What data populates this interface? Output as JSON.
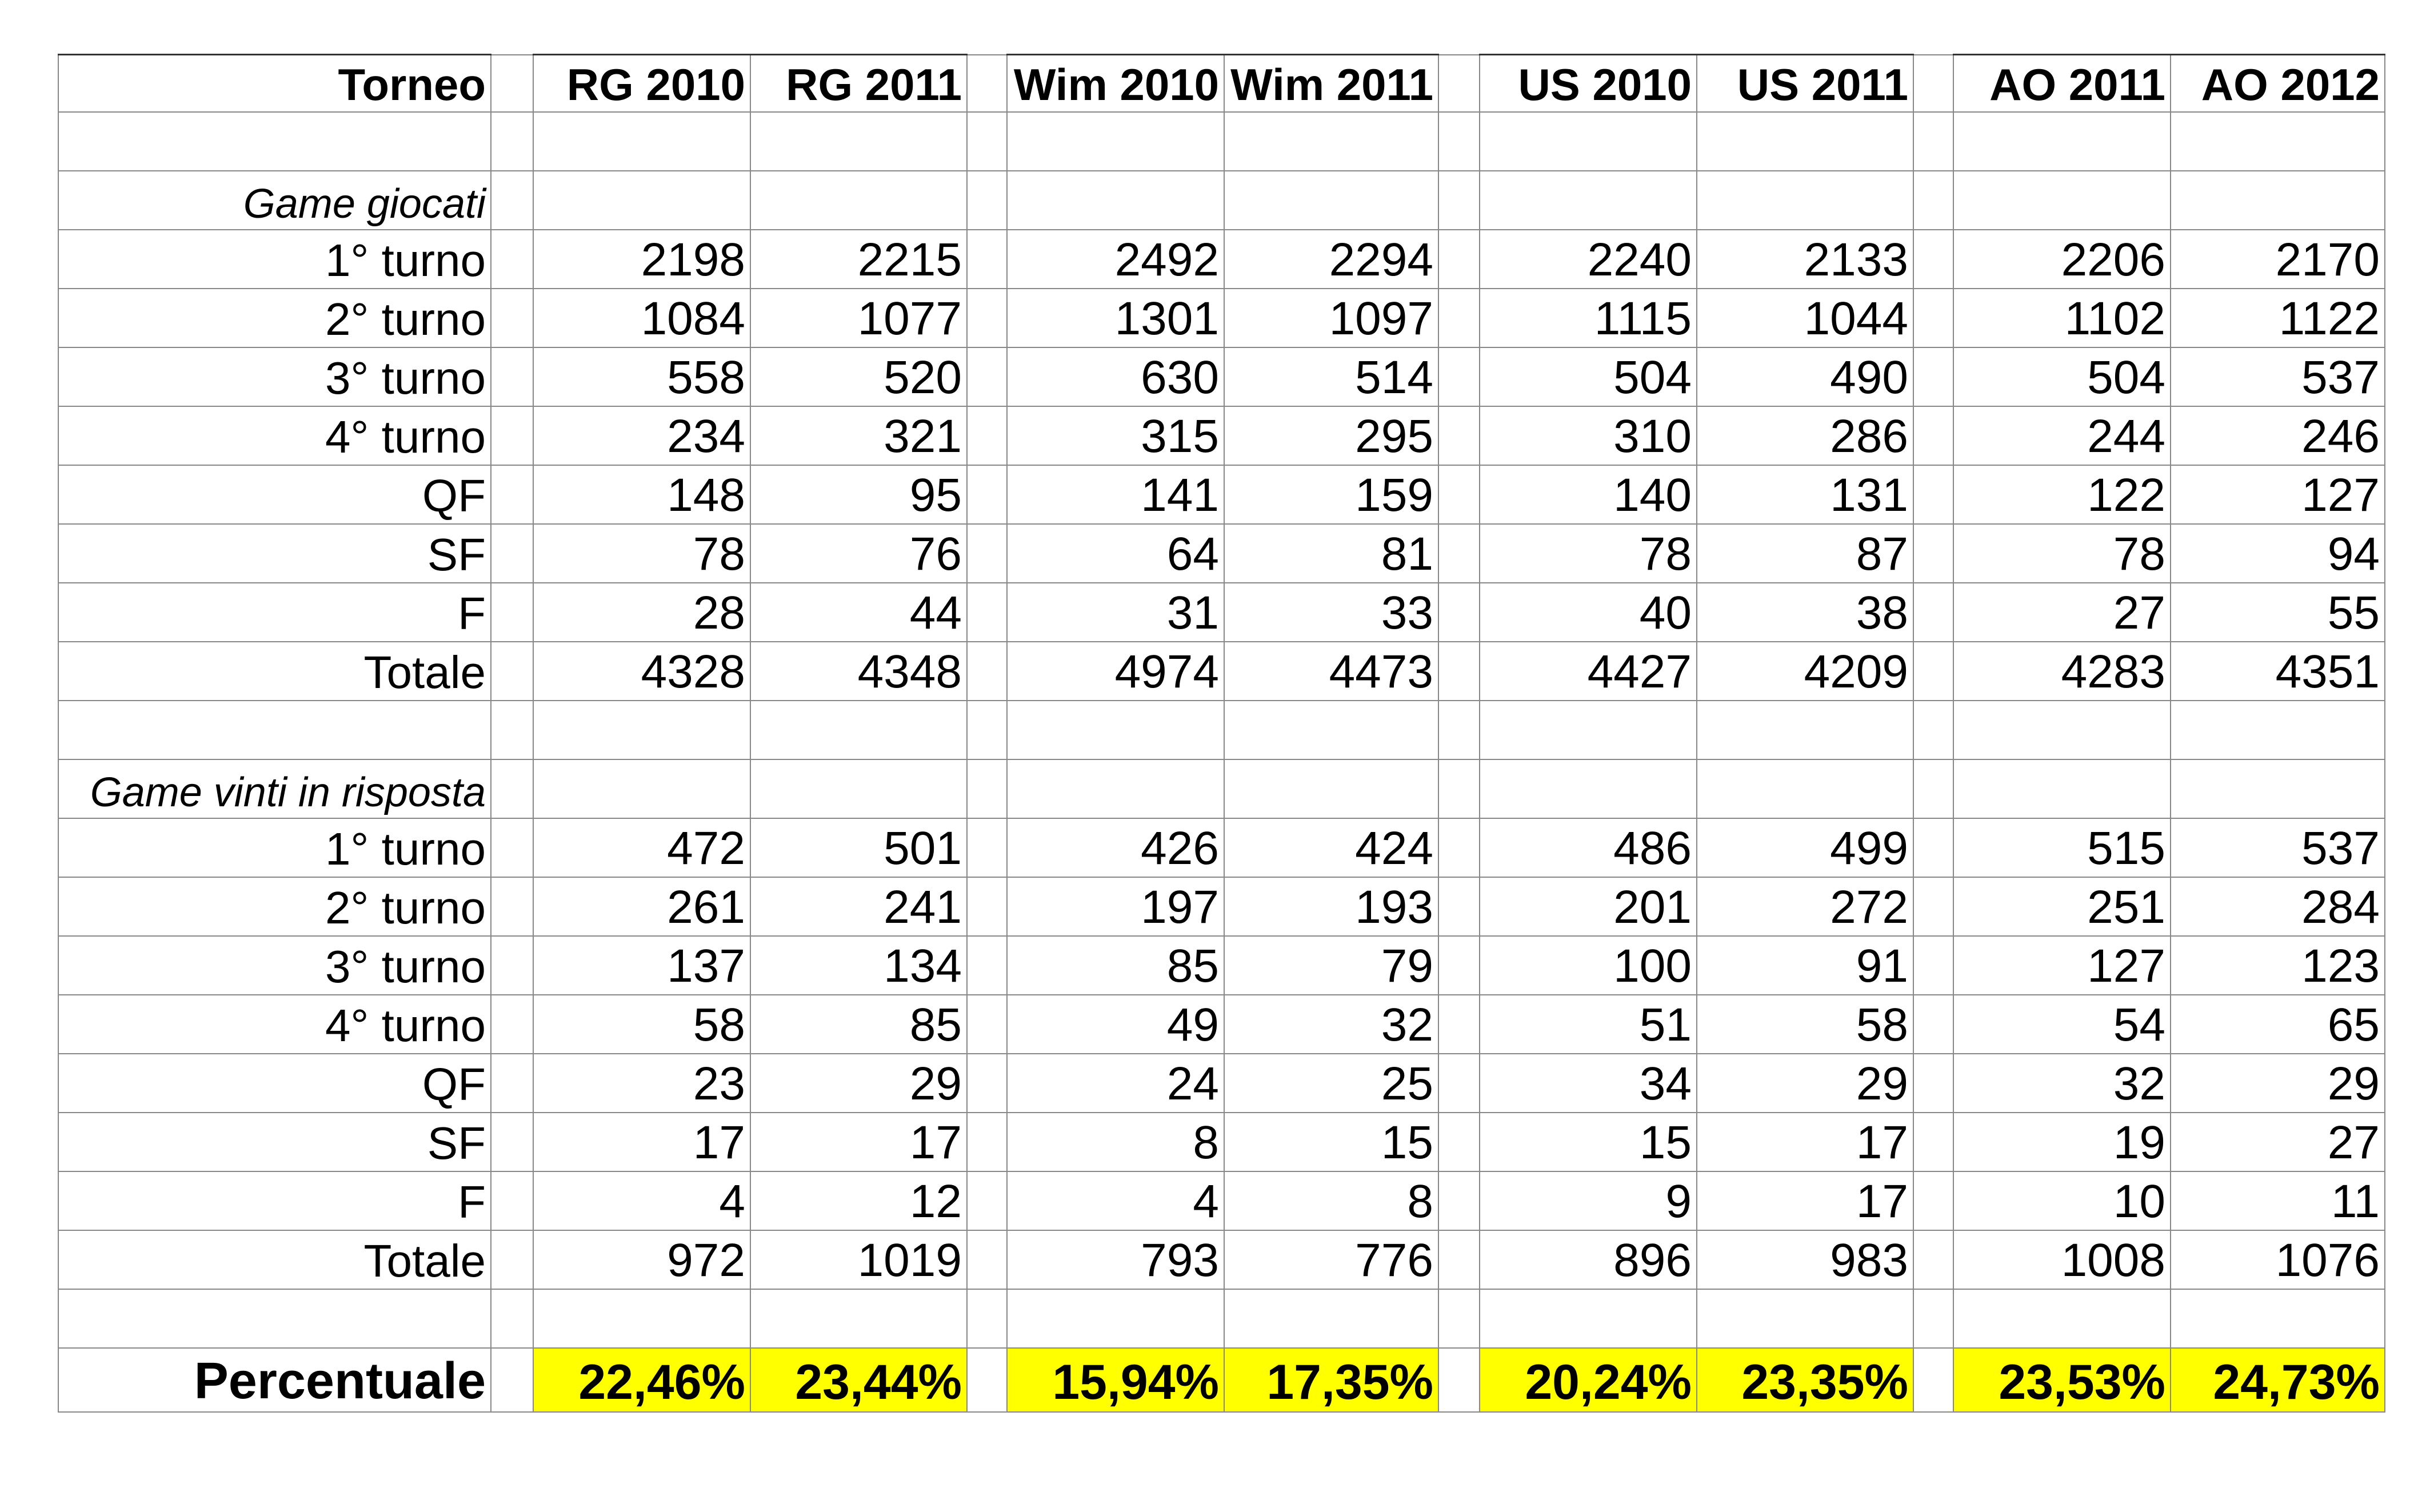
{
  "header": {
    "first_label": "Torneo",
    "columns": [
      "RG 2010",
      "RG 2011",
      "Wim 2010",
      "Wim 2011",
      "US 2010",
      "US 2011",
      "AO 2011",
      "AO 2012"
    ]
  },
  "sections": [
    {
      "title": "Game giocati",
      "rows": [
        {
          "label": "1° turno",
          "values": [
            "2198",
            "2215",
            "2492",
            "2294",
            "2240",
            "2133",
            "2206",
            "2170"
          ]
        },
        {
          "label": "2° turno",
          "values": [
            "1084",
            "1077",
            "1301",
            "1097",
            "1115",
            "1044",
            "1102",
            "1122"
          ]
        },
        {
          "label": "3° turno",
          "values": [
            "558",
            "520",
            "630",
            "514",
            "504",
            "490",
            "504",
            "537"
          ]
        },
        {
          "label": "4° turno",
          "values": [
            "234",
            "321",
            "315",
            "295",
            "310",
            "286",
            "244",
            "246"
          ]
        },
        {
          "label": "QF",
          "values": [
            "148",
            "95",
            "141",
            "159",
            "140",
            "131",
            "122",
            "127"
          ]
        },
        {
          "label": "SF",
          "values": [
            "78",
            "76",
            "64",
            "81",
            "78",
            "87",
            "78",
            "94"
          ]
        },
        {
          "label": "F",
          "values": [
            "28",
            "44",
            "31",
            "33",
            "40",
            "38",
            "27",
            "55"
          ]
        },
        {
          "label": "Totale",
          "values": [
            "4328",
            "4348",
            "4974",
            "4473",
            "4427",
            "4209",
            "4283",
            "4351"
          ]
        }
      ]
    },
    {
      "title": "Game vinti in risposta",
      "rows": [
        {
          "label": "1° turno",
          "values": [
            "472",
            "501",
            "426",
            "424",
            "486",
            "499",
            "515",
            "537"
          ]
        },
        {
          "label": "2° turno",
          "values": [
            "261",
            "241",
            "197",
            "193",
            "201",
            "272",
            "251",
            "284"
          ]
        },
        {
          "label": "3° turno",
          "values": [
            "137",
            "134",
            "85",
            "79",
            "100",
            "91",
            "127",
            "123"
          ]
        },
        {
          "label": "4° turno",
          "values": [
            "58",
            "85",
            "49",
            "32",
            "51",
            "58",
            "54",
            "65"
          ]
        },
        {
          "label": "QF",
          "values": [
            "23",
            "29",
            "24",
            "25",
            "34",
            "29",
            "32",
            "29"
          ]
        },
        {
          "label": "SF",
          "values": [
            "17",
            "17",
            "8",
            "15",
            "15",
            "17",
            "19",
            "27"
          ]
        },
        {
          "label": "F",
          "values": [
            "4",
            "12",
            "4",
            "8",
            "9",
            "17",
            "10",
            "11"
          ]
        },
        {
          "label": "Totale",
          "values": [
            "972",
            "1019",
            "793",
            "776",
            "896",
            "983",
            "1008",
            "1076"
          ]
        }
      ]
    }
  ],
  "percent_row": {
    "label": "Percentuale",
    "values": [
      "22,46%",
      "23,44%",
      "15,94%",
      "17,35%",
      "20,24%",
      "23,35%",
      "23,53%",
      "24,73%"
    ]
  },
  "highlight_color": "#ffff00"
}
